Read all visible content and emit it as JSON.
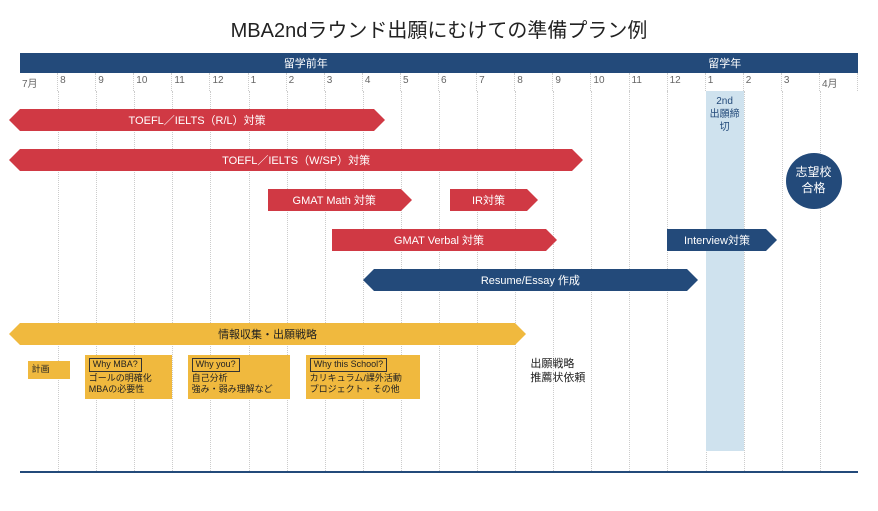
{
  "title": "MBA2ndラウンド出願にむけての準備プラン例",
  "header": {
    "seg1": {
      "label": "留学前年",
      "widthPct": 68.2
    },
    "seg2": {
      "label": "留学年",
      "widthPct": 31.8
    }
  },
  "months": [
    "7月",
    "8",
    "9",
    "10",
    "11",
    "12",
    "1",
    "2",
    "3",
    "4",
    "5",
    "6",
    "7",
    "8",
    "9",
    "10",
    "11",
    "12",
    "1",
    "2",
    "3",
    "4月"
  ],
  "monthWidthPct": 4.545,
  "colors": {
    "red": "#d03944",
    "blue": "#234a7a",
    "yellow": "#f0b93e",
    "deadlineBg": "#cfe2ee",
    "grid": "#cccccc",
    "bg": "#ffffff"
  },
  "deadline": {
    "label1": "2nd",
    "label2": "出願締切",
    "startMonth": 18,
    "spanMonths": 1,
    "topPx": 0,
    "heightPx": 360
  },
  "bars": [
    {
      "id": "toefl-rl",
      "label": "TOEFL／IELTS（R/L）対策",
      "color": "red",
      "startMonth": 0,
      "spanMonths": 9.3,
      "topPx": 18,
      "arrows": "lr"
    },
    {
      "id": "toefl-wsp",
      "label": "TOEFL／IELTS（W/SP）対策",
      "color": "red",
      "startMonth": 0,
      "spanMonths": 14.5,
      "topPx": 58,
      "arrows": "lr"
    },
    {
      "id": "gmat-math",
      "label": "GMAT Math 対策",
      "color": "red",
      "startMonth": 6.5,
      "spanMonths": 3.5,
      "topPx": 98,
      "arrows": "r"
    },
    {
      "id": "ir",
      "label": "IR対策",
      "color": "red",
      "startMonth": 11.3,
      "spanMonths": 2,
      "topPx": 98,
      "arrows": "r"
    },
    {
      "id": "gmat-verbal",
      "label": "GMAT Verbal 対策",
      "color": "red",
      "startMonth": 8.2,
      "spanMonths": 5.6,
      "topPx": 138,
      "arrows": "r"
    },
    {
      "id": "interview",
      "label": "Interview対策",
      "color": "blue",
      "startMonth": 17,
      "spanMonths": 2.6,
      "topPx": 138,
      "arrows": "r"
    },
    {
      "id": "resume-essay",
      "label": "Resume/Essay 作成",
      "color": "blue",
      "startMonth": 9.3,
      "spanMonths": 8.2,
      "topPx": 178,
      "arrows": "lr"
    },
    {
      "id": "info-strategy",
      "label": "情報収集・出願戦略",
      "color": "yellow",
      "startMonth": 0,
      "spanMonths": 13,
      "topPx": 232,
      "arrows": "lr"
    }
  ],
  "boxes": [
    {
      "id": "plan",
      "hd": "",
      "body": "計画",
      "startMonth": 0.2,
      "widthMonths": 1.1,
      "topPx": 270,
      "sub": ""
    },
    {
      "id": "why-mba",
      "hd": "Why MBA?",
      "body": "ゴールの明確化",
      "sub": "MBAの必要性",
      "startMonth": 1.7,
      "widthMonths": 2.3,
      "topPx": 264
    },
    {
      "id": "why-you",
      "hd": "Why you?",
      "body": "自己分析",
      "sub": "強み・弱み理解など",
      "startMonth": 4.4,
      "widthMonths": 2.7,
      "topPx": 264
    },
    {
      "id": "why-school",
      "hd": "Why this School?",
      "body": "カリキュラム/課外活動",
      "sub": "プロジェクト・その他",
      "startMonth": 7.5,
      "widthMonths": 3,
      "topPx": 264
    }
  ],
  "texts": [
    {
      "id": "strategy-rec",
      "line1": "出願戦略",
      "line2": "推薦状依頼",
      "startMonth": 13.4,
      "topPx": 266
    }
  ],
  "circle": {
    "label1": "志望校",
    "label2": "合格",
    "leftMonth": 20.1,
    "topPx": 62
  }
}
